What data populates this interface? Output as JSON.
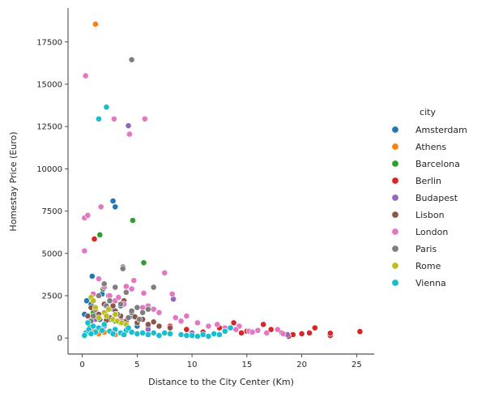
{
  "chart_data": {
    "type": "scatter",
    "title": "",
    "xlabel": "Distance to the City Center (Km)",
    "ylabel": "Homestay Price (Euro)",
    "xlim": [
      -1.3,
      26.6
    ],
    "ylim": [
      -950,
      19500
    ],
    "xticks": [
      0,
      5,
      10,
      15,
      20,
      25
    ],
    "yticks": [
      0,
      2500,
      5000,
      7500,
      10000,
      12500,
      15000,
      17500
    ],
    "grid": false,
    "legend": {
      "title": "city",
      "position": "right"
    },
    "series": [
      {
        "name": "Amsterdam",
        "color": "#1f77b4",
        "x": [
          0.2,
          0.4,
          0.6,
          0.9,
          1.2,
          1.5,
          1.8,
          2.1,
          2.4,
          2.8,
          3.0,
          3.0,
          3.5,
          4.0,
          4.5,
          5.0,
          6.0,
          0.8,
          1.6,
          2.5
        ],
        "y": [
          1400,
          2200,
          900,
          3650,
          1800,
          1200,
          2600,
          1500,
          2500,
          8100,
          7750,
          1000,
          1900,
          800,
          1300,
          700,
          600,
          2000,
          1100,
          1700
        ]
      },
      {
        "name": "Athens",
        "color": "#ff7f0e",
        "x": [
          1.2,
          0.5,
          1.0,
          1.5,
          2.0,
          3.0,
          0.8
        ],
        "y": [
          18550,
          300,
          450,
          250,
          350,
          200,
          500
        ]
      },
      {
        "name": "Barcelona",
        "color": "#2ca02c",
        "x": [
          4.6,
          1.6,
          5.6,
          1.9,
          1.0,
          2.5,
          3.5,
          0.7,
          2.2,
          4.2
        ],
        "y": [
          6950,
          6100,
          4450,
          2900,
          1500,
          1100,
          900,
          700,
          1300,
          600
        ]
      },
      {
        "name": "Berlin",
        "color": "#d62728",
        "x": [
          1.1,
          13.8,
          16.5,
          17.2,
          18.2,
          19.2,
          20.0,
          20.7,
          21.2,
          22.6,
          22.6,
          25.3,
          15.0,
          12.5,
          9.5,
          8.0,
          18.8,
          14.5,
          11.0
        ],
        "y": [
          5850,
          900,
          800,
          500,
          300,
          200,
          250,
          300,
          600,
          150,
          280,
          380,
          400,
          600,
          500,
          700,
          100,
          300,
          350
        ]
      },
      {
        "name": "Budapest",
        "color": "#9467bd",
        "x": [
          4.2,
          8.3,
          1.2,
          3.6,
          18.7,
          2.0,
          6.0,
          10.0,
          5.0
        ],
        "y": [
          12550,
          2300,
          1100,
          1000,
          200,
          700,
          500,
          300,
          900
        ]
      },
      {
        "name": "Lisbon",
        "color": "#8c564b",
        "x": [
          0.8,
          1.5,
          2.0,
          2.5,
          3.0,
          3.5,
          4.0,
          4.5,
          5.0,
          5.5,
          6.0,
          7.0,
          8.0,
          1.2,
          2.8,
          3.8,
          0.5,
          4.8,
          6.5,
          2.2
        ],
        "y": [
          1800,
          1400,
          2000,
          1200,
          1600,
          1300,
          1000,
          1500,
          900,
          1100,
          800,
          700,
          600,
          1700,
          1900,
          2200,
          1300,
          1250,
          950,
          1050
        ]
      },
      {
        "name": "London",
        "color": "#e377c2",
        "x": [
          0.3,
          0.2,
          0.5,
          0.2,
          1.7,
          2.9,
          4.3,
          5.7,
          3.0,
          4.7,
          5.6,
          7.5,
          8.2,
          4.0,
          5.5,
          9.5,
          12.3,
          14.3,
          15.2,
          16.8,
          17.8,
          18.3,
          1.5,
          2.0,
          2.5,
          3.8,
          6.5,
          7.0,
          8.5,
          10.5,
          11.5,
          13.0,
          14.0,
          16.0,
          3.3,
          4.5,
          1.0,
          6.0,
          9.0,
          15.5
        ],
        "y": [
          15500,
          7100,
          7250,
          5150,
          7750,
          12950,
          12050,
          12950,
          2200,
          3400,
          2650,
          3850,
          2600,
          3050,
          1800,
          1300,
          800,
          700,
          400,
          300,
          500,
          250,
          3500,
          3000,
          2500,
          2000,
          1700,
          1500,
          1200,
          900,
          700,
          600,
          500,
          450,
          2400,
          2900,
          2600,
          1900,
          1000,
          350
        ]
      },
      {
        "name": "Paris",
        "color": "#7f7f7f",
        "x": [
          4.5,
          3.7,
          3.7,
          2.0,
          6.5,
          1.5,
          2.5,
          3.0,
          3.5,
          4.0,
          4.5,
          5.0,
          5.5,
          6.0,
          1.0,
          2.2,
          3.2,
          4.2,
          5.2,
          0.8
        ],
        "y": [
          16450,
          4200,
          4100,
          3200,
          3000,
          2500,
          2200,
          3000,
          2000,
          2700,
          1600,
          1800,
          1500,
          1700,
          1300,
          1900,
          1400,
          1200,
          1100,
          1000
        ]
      },
      {
        "name": "Rome",
        "color": "#bcbd22",
        "x": [
          0.8,
          1.2,
          1.5,
          2.0,
          2.4,
          2.8,
          3.2,
          3.6,
          4.0,
          1.0,
          2.2,
          3.0
        ],
        "y": [
          2400,
          1800,
          1200,
          1500,
          1700,
          1100,
          1000,
          900,
          800,
          2200,
          1300,
          1400
        ]
      },
      {
        "name": "Vienna",
        "color": "#17becf",
        "x": [
          2.2,
          1.5,
          0.3,
          0.6,
          1.0,
          1.5,
          2.0,
          2.5,
          3.0,
          3.5,
          4.0,
          4.5,
          5.0,
          5.5,
          6.0,
          7.0,
          8.0,
          9.0,
          10.0,
          11.0,
          12.0,
          13.0,
          13.5,
          0.5,
          1.2,
          1.8,
          2.8,
          3.8,
          6.5,
          9.5,
          11.5,
          12.5,
          0.2,
          0.8,
          4.2,
          7.5,
          10.5
        ],
        "y": [
          13650,
          12950,
          300,
          500,
          700,
          600,
          800,
          400,
          500,
          300,
          450,
          350,
          250,
          300,
          200,
          150,
          250,
          200,
          150,
          200,
          250,
          400,
          600,
          900,
          350,
          450,
          250,
          200,
          300,
          150,
          100,
          200,
          150,
          250,
          600,
          300,
          100
        ]
      }
    ]
  }
}
